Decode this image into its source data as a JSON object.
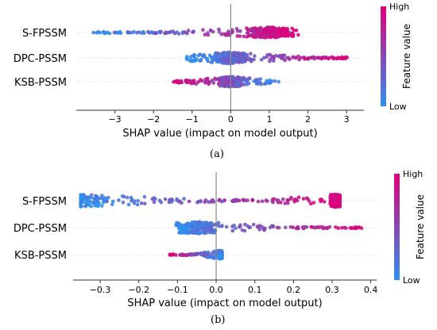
{
  "panels": [
    {
      "caption": "(a)",
      "colorbar": {
        "high": "High",
        "low": "Low",
        "label": "Feature value"
      },
      "chart_data": {
        "type": "scatter",
        "subtype": "shap-beeswarm",
        "xlabel": "SHAP value (impact on model output)",
        "xlim": [
          -4.0,
          3.45
        ],
        "xticks": [
          -3,
          -2,
          -1,
          0,
          1,
          2,
          3
        ],
        "tick_labels": [
          "−3",
          "−2",
          "−1",
          "0",
          "1",
          "2",
          "3"
        ],
        "features": [
          "S-FPSSM",
          "DPC-PSSM",
          "KSB-PSSM"
        ],
        "color_scale": {
          "low": "#2e8ff0",
          "high": "#e0007a",
          "label": "Feature value"
        },
        "series": [
          {
            "feature": "S-FPSSM",
            "min": -3.6,
            "max": 1.8,
            "center": 1.0,
            "density": 0.95,
            "spread": 0.85,
            "low_side": "left"
          },
          {
            "feature": "DPC-PSSM",
            "min": -1.15,
            "max": 3.05,
            "center": -0.05,
            "density": 1.0,
            "spread": 0.9,
            "low_side": "left"
          },
          {
            "feature": "KSB-PSSM",
            "min": -1.5,
            "max": 1.25,
            "center": 0.0,
            "density": 0.9,
            "spread": 0.8,
            "low_side": "right"
          }
        ]
      }
    },
    {
      "caption": "(b)",
      "colorbar": {
        "high": "High",
        "low": "Low",
        "label": "Feature value"
      },
      "chart_data": {
        "type": "scatter",
        "subtype": "shap-beeswarm",
        "xlabel": "SHAP value (impact on model output)",
        "xlim": [
          -0.37,
          0.415
        ],
        "xticks": [
          -0.3,
          -0.2,
          -0.1,
          0.0,
          0.1,
          0.2,
          0.3,
          0.4
        ],
        "tick_labels": [
          "−0.3",
          "−0.2",
          "−0.1",
          "0.0",
          "0.1",
          "0.2",
          "0.3",
          "0.4"
        ],
        "features": [
          "S-FPSSM",
          "DPC-PSSM",
          "KSB-PSSM"
        ],
        "color_scale": {
          "low": "#2e8ff0",
          "high": "#e0007a",
          "label": "Feature value"
        },
        "series": [
          {
            "feature": "S-FPSSM",
            "min": -0.35,
            "max": 0.32,
            "center": -0.34,
            "density": 0.85,
            "spread": 0.9,
            "low_side": "left",
            "second_center": 0.31
          },
          {
            "feature": "DPC-PSSM",
            "min": -0.11,
            "max": 0.38,
            "center": -0.05,
            "density": 0.8,
            "spread": 0.85,
            "low_side": "left"
          },
          {
            "feature": "KSB-PSSM",
            "min": -0.12,
            "max": 0.015,
            "center": 0.01,
            "density": 0.45,
            "spread": 0.6,
            "low_side": "right"
          }
        ]
      }
    }
  ]
}
